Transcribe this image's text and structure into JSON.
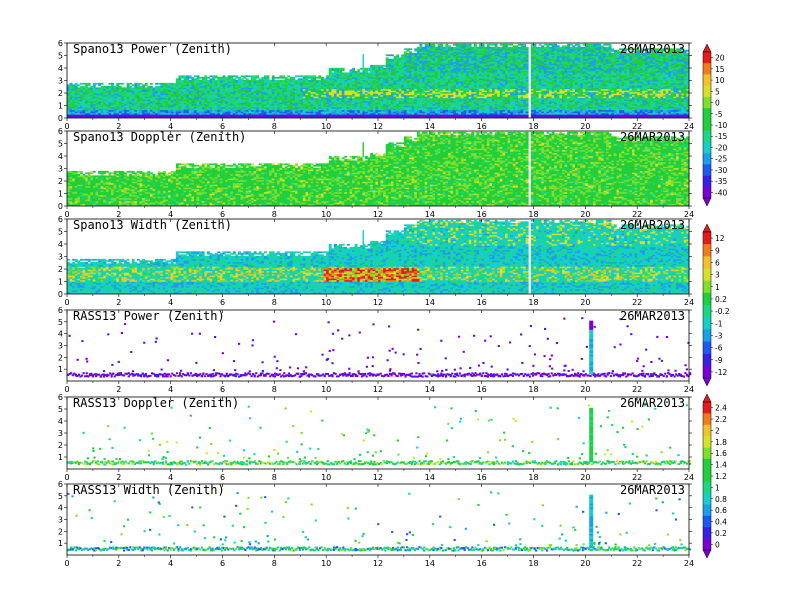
{
  "colors": {
    "palette": [
      "#7b00d8",
      "#3a1ee6",
      "#1f5af0",
      "#1aa0e6",
      "#16cfc8",
      "#1bd883",
      "#22cf3a",
      "#7fe02c",
      "#d8e02a",
      "#f2c12b",
      "#ef7d1f",
      "#e31c1c",
      "#ff3c8c"
    ]
  },
  "chart_data": [
    {
      "type": "heatmap",
      "title": "Spano13 Power (Zenith)",
      "date": "26MAR2013",
      "x_ticks": [
        "0",
        "2",
        "4",
        "6",
        "8",
        "10",
        "12",
        "14",
        "16",
        "18",
        "20",
        "22",
        "24"
      ],
      "y_ticks": [
        "0",
        "1",
        "2",
        "3",
        "4",
        "5",
        "6"
      ],
      "xlim": [
        0,
        24
      ],
      "ylim": [
        0,
        6
      ],
      "profile": "spano",
      "scheme": "power"
    },
    {
      "type": "heatmap",
      "title": "Spano13 Doppler (Zenith)",
      "date": "26MAR2013",
      "x_ticks": [
        "0",
        "2",
        "4",
        "6",
        "8",
        "10",
        "12",
        "14",
        "16",
        "18",
        "20",
        "22",
        "24"
      ],
      "y_ticks": [
        "0",
        "1",
        "2",
        "3",
        "4",
        "5",
        "6"
      ],
      "xlim": [
        0,
        24
      ],
      "ylim": [
        0,
        6
      ],
      "profile": "spano",
      "scheme": "doppler"
    },
    {
      "type": "heatmap",
      "title": "Spano13 Width (Zenith)",
      "date": "26MAR2013",
      "x_ticks": [
        "0",
        "2",
        "4",
        "6",
        "8",
        "10",
        "12",
        "14",
        "16",
        "18",
        "20",
        "22",
        "24"
      ],
      "y_ticks": [
        "0",
        "1",
        "2",
        "3",
        "4",
        "5",
        "6"
      ],
      "xlim": [
        0,
        24
      ],
      "ylim": [
        0,
        6
      ],
      "profile": "spano",
      "scheme": "width"
    },
    {
      "type": "heatmap",
      "title": "RASS13 Power (Zenith)",
      "date": "26MAR2013",
      "x_ticks": [
        "0",
        "2",
        "4",
        "6",
        "8",
        "10",
        "12",
        "14",
        "16",
        "18",
        "20",
        "22",
        "24"
      ],
      "y_ticks": [
        "1",
        "2",
        "3",
        "4",
        "5",
        "6"
      ],
      "xlim": [
        0,
        24
      ],
      "ylim": [
        0,
        6
      ],
      "profile": "rass",
      "scheme": "rpower"
    },
    {
      "type": "heatmap",
      "title": "RASS13 Doppler (Zenith)",
      "date": "26MAR2013",
      "x_ticks": [
        "0",
        "2",
        "4",
        "6",
        "8",
        "10",
        "12",
        "14",
        "16",
        "18",
        "20",
        "22",
        "24"
      ],
      "y_ticks": [
        "1",
        "2",
        "3",
        "4",
        "5",
        "6"
      ],
      "xlim": [
        0,
        24
      ],
      "ylim": [
        0,
        6
      ],
      "profile": "rass",
      "scheme": "rdoppler"
    },
    {
      "type": "heatmap",
      "title": "RASS13 Width (Zenith)",
      "date": "26MAR2013",
      "x_ticks": [
        "0",
        "2",
        "4",
        "6",
        "8",
        "10",
        "12",
        "14",
        "16",
        "18",
        "20",
        "22",
        "24"
      ],
      "y_ticks": [
        "1",
        "2",
        "3",
        "4",
        "5",
        "6"
      ],
      "xlim": [
        0,
        24
      ],
      "ylim": [
        0,
        6
      ],
      "profile": "rass",
      "scheme": "rwidth"
    }
  ],
  "colorbars": [
    {
      "name": "colorbar-spano-power-doppler",
      "labels": [
        "20",
        "15",
        "10",
        "5",
        "0",
        "-5",
        "-10",
        "-15",
        "-20",
        "-25",
        "-30",
        "-35",
        "-40"
      ]
    },
    {
      "name": "colorbar-spano-width-rass-power",
      "labels": [
        "12",
        "9",
        "6",
        "3",
        "1",
        "0.2",
        "-0.2",
        "-1",
        "-3",
        "-6",
        "-9",
        "-12"
      ]
    },
    {
      "name": "colorbar-rass-doppler-width",
      "labels": [
        "2.4",
        "2.2",
        "2",
        "1.8",
        "1.6",
        "1.4",
        "1.2",
        "1",
        "0.8",
        "0.6",
        "0.4",
        "0.2",
        "0"
      ]
    }
  ]
}
